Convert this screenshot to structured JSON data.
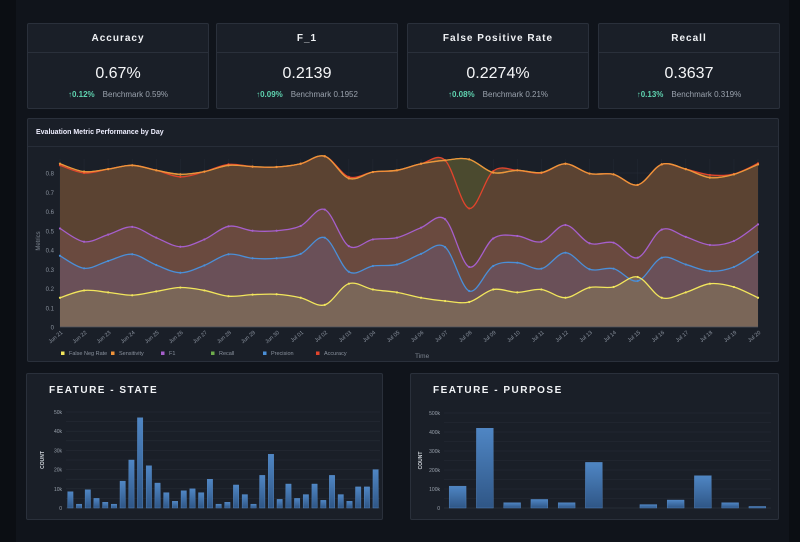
{
  "kpis": [
    {
      "title": "Accuracy",
      "value": "0.67%",
      "delta": "↑0.12%",
      "benchmark": "Benchmark 0.59%"
    },
    {
      "title": "F_1",
      "value": "0.2139",
      "delta": "↑0.09%",
      "benchmark": "Benchmark 0.1952"
    },
    {
      "title": "False Positive Rate",
      "value": "0.2274%",
      "delta": "↑0.08%",
      "benchmark": "Benchmark 0.21%"
    },
    {
      "title": "Recall",
      "value": "0.3637",
      "delta": "↑0.13%",
      "benchmark": "Benchmark 0.319%"
    }
  ],
  "chart_data": [
    {
      "type": "area",
      "title": "Evaluation Metric Performance by Day",
      "xlabel": "Time",
      "ylabel": "Metrics",
      "ylim": [
        0,
        0.9
      ],
      "yticks": [
        "0",
        "0.1",
        "0.2",
        "0.3",
        "0.4",
        "0.5",
        "0.6",
        "0.7",
        "0.8"
      ],
      "x": [
        "Jun 21",
        "Jun 22",
        "Jun 23",
        "Jun 24",
        "Jun 25",
        "Jun 26",
        "Jun 27",
        "Jun 28",
        "Jun 29",
        "Jun 30",
        "Jul 01",
        "Jul 02",
        "Jul 03",
        "Jul 04",
        "Jul 05",
        "Jul 06",
        "Jul 07",
        "Jul 08",
        "Jul 09",
        "Jul 10",
        "Jul 11",
        "Jul 12",
        "Jul 13",
        "Jul 14",
        "Jul 15",
        "Jul 16",
        "Jul 17",
        "Jul 18",
        "Jul 19",
        "Jul 20"
      ],
      "legend_placement": "bottom-left",
      "series": [
        {
          "name": "False Neg Rate",
          "color": "#f2e65c",
          "fill": "#7a6658",
          "values": [
            0.152,
            0.19,
            0.18,
            0.165,
            0.185,
            0.205,
            0.19,
            0.16,
            0.168,
            0.17,
            0.152,
            0.115,
            0.225,
            0.195,
            0.18,
            0.152,
            0.135,
            0.13,
            0.195,
            0.18,
            0.195,
            0.152,
            0.205,
            0.208,
            0.26,
            0.152,
            0.18,
            0.225,
            0.208,
            0.152
          ]
        },
        {
          "name": "Sensitivity",
          "color": "#f0933a",
          "fill": "",
          "values": [
            0.848,
            0.807,
            0.82,
            0.84,
            0.814,
            0.793,
            0.807,
            0.84,
            0.833,
            0.831,
            0.848,
            0.887,
            0.772,
            0.805,
            0.814,
            0.848,
            0.866,
            0.871,
            0.802,
            0.814,
            0.802,
            0.848,
            0.797,
            0.793,
            0.738,
            0.845,
            0.82,
            0.776,
            0.793,
            0.845
          ]
        },
        {
          "name": "F1",
          "color": "#a65fcc",
          "fill": "#6a4a3f",
          "values": [
            0.512,
            0.443,
            0.48,
            0.52,
            0.464,
            0.417,
            0.455,
            0.523,
            0.5,
            0.5,
            0.525,
            0.61,
            0.42,
            0.455,
            0.464,
            0.516,
            0.56,
            0.312,
            0.46,
            0.473,
            0.443,
            0.53,
            0.435,
            0.438,
            0.36,
            0.506,
            0.468,
            0.426,
            0.447,
            0.533
          ]
        },
        {
          "name": "Recall",
          "color": "#6fae4c",
          "fill": "#4b4a2f",
          "values": [
            0.848,
            0.807,
            0.82,
            0.84,
            0.814,
            0.793,
            0.807,
            0.84,
            0.833,
            0.831,
            0.848,
            0.887,
            0.772,
            0.805,
            0.814,
            0.848,
            0.866,
            0.871,
            0.802,
            0.814,
            0.802,
            0.848,
            0.797,
            0.793,
            0.738,
            0.845,
            0.82,
            0.776,
            0.793,
            0.845
          ]
        },
        {
          "name": "Precision",
          "color": "#4a8fd8",
          "fill": "#6a5058",
          "values": [
            0.37,
            0.305,
            0.343,
            0.378,
            0.322,
            0.282,
            0.32,
            0.378,
            0.357,
            0.357,
            0.38,
            0.464,
            0.287,
            0.317,
            0.325,
            0.38,
            0.415,
            0.187,
            0.317,
            0.334,
            0.303,
            0.386,
            0.3,
            0.303,
            0.239,
            0.36,
            0.325,
            0.29,
            0.312,
            0.39
          ]
        },
        {
          "name": "Accuracy",
          "color": "#e2442c",
          "fill": "#5b4332",
          "values": [
            0.84,
            0.8,
            0.82,
            0.84,
            0.814,
            0.78,
            0.807,
            0.845,
            0.833,
            0.831,
            0.848,
            0.887,
            0.78,
            0.805,
            0.814,
            0.848,
            0.866,
            0.616,
            0.81,
            0.814,
            0.8,
            0.848,
            0.797,
            0.793,
            0.738,
            0.845,
            0.82,
            0.79,
            0.795,
            0.85
          ]
        }
      ]
    },
    {
      "type": "bar",
      "title": "FEATURE - STATE",
      "ylabel": "COUNT",
      "ylim": [
        0,
        50000
      ],
      "yticks": [
        "0",
        "10k",
        "20k",
        "30k",
        "40k",
        "50k"
      ],
      "values": [
        8500,
        2000,
        9500,
        5000,
        3000,
        2000,
        14000,
        25000,
        47000,
        22000,
        13000,
        8000,
        3500,
        9000,
        10000,
        8000,
        15000,
        2000,
        3000,
        12000,
        7000,
        2000,
        17000,
        28000,
        4500,
        12500,
        5000,
        7000,
        12500,
        4000,
        17000,
        7000,
        3500,
        11000,
        11000,
        20000
      ]
    },
    {
      "type": "bar",
      "title": "FEATURE - PURPOSE",
      "ylabel": "COUNT",
      "ylim": [
        0,
        500000
      ],
      "yticks": [
        "0",
        "100k",
        "200k",
        "300k",
        "400k",
        "500k"
      ],
      "values": [
        115000,
        420000,
        28000,
        45000,
        28000,
        240000,
        0,
        18000,
        42000,
        170000,
        28000,
        8000
      ]
    }
  ]
}
